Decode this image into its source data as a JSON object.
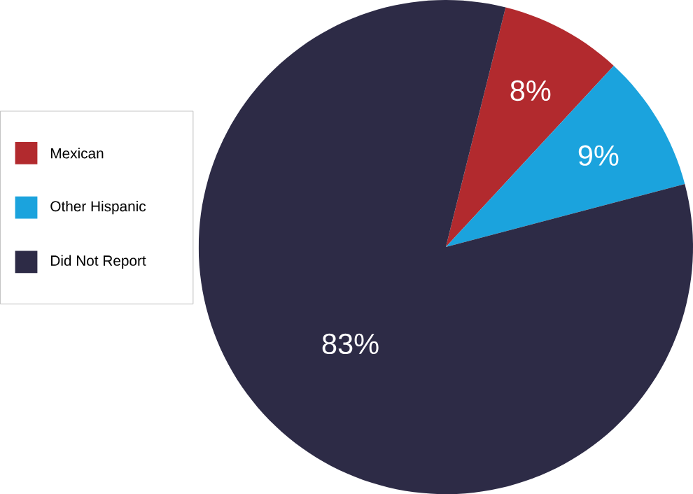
{
  "chart_data": {
    "type": "pie",
    "categories": [
      "Mexican",
      "Other Hispanic",
      "Did Not Report"
    ],
    "values": [
      8,
      9,
      83
    ],
    "colors": [
      "#b22a2e",
      "#1ba3dd",
      "#2d2b46"
    ],
    "value_labels": [
      "8%",
      "9%",
      "83%"
    ],
    "legend": "left"
  }
}
